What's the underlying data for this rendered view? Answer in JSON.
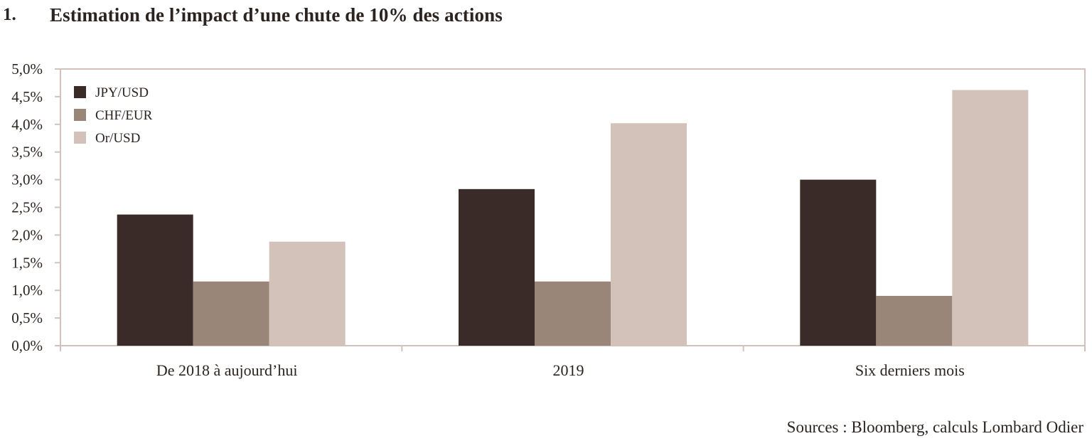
{
  "header": {
    "number": "1.",
    "title": "Estimation de l’impact d’une chute de 10% des actions"
  },
  "footer": {
    "source": "Sources : Bloomberg, calculs Lombard Odier"
  },
  "colors": {
    "axis": "#d2c2bb",
    "text": "#2b2320"
  },
  "chart_data": {
    "type": "bar",
    "categories": [
      "De 2018 à aujourd’hui",
      "2019",
      "Six derniers mois"
    ],
    "series": [
      {
        "name": "JPY/USD",
        "color": "#3b2b28",
        "values": [
          2.37,
          2.83,
          3.0
        ]
      },
      {
        "name": "CHF/EUR",
        "color": "#9a8579",
        "values": [
          1.16,
          1.16,
          0.9
        ]
      },
      {
        "name": "Or/USD",
        "color": "#d2c2b9",
        "values": [
          1.88,
          4.02,
          4.62
        ]
      }
    ],
    "ylim": [
      0,
      5
    ],
    "yticks": [
      "0,0%",
      "0,5%",
      "1,0%",
      "1,5%",
      "2,0%",
      "2,5%",
      "3,0%",
      "3,5%",
      "4,0%",
      "4,5%",
      "5,0%"
    ],
    "legend_position": "top-left",
    "grid": false
  }
}
